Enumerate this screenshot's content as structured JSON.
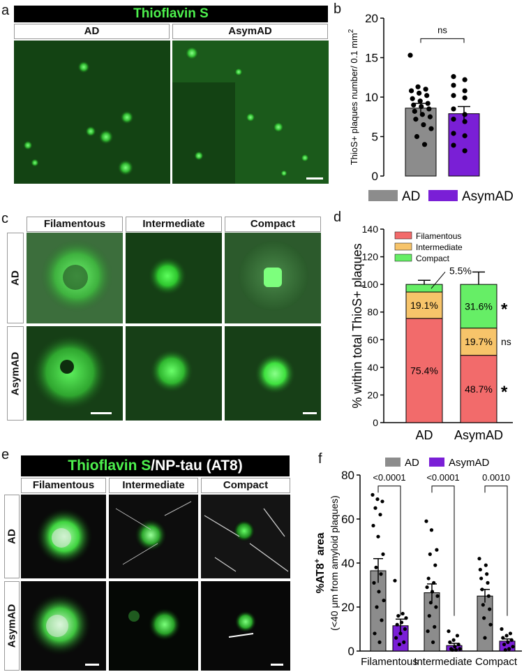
{
  "panels": {
    "a": {
      "letter": "a",
      "banner": "Thioflavin S",
      "columns": [
        "AD",
        "AsymAD"
      ]
    },
    "c": {
      "letter": "c",
      "columns": [
        "Filamentous",
        "Intermediate",
        "Compact"
      ],
      "rows": [
        "AD",
        "AsymAD"
      ]
    },
    "e": {
      "letter": "e",
      "banner_green": "Thioflavin S",
      "banner_white": "/NP-tau (AT8)",
      "columns": [
        "Filamentous",
        "Intermediate",
        "Compact"
      ],
      "rows": [
        "AD",
        "AsymAD"
      ]
    }
  },
  "colors": {
    "AD": "#8c8c8c",
    "AsymAD": "#7a1fd6",
    "Filamentous": "#f26b6b",
    "Intermediate": "#f7c46a",
    "Compact": "#66ee66",
    "tissue_green": "#2ec62e"
  },
  "chart_data": [
    {
      "panel": "b",
      "type": "bar",
      "categories": [
        "AD",
        "AsymAD"
      ],
      "values": [
        8.6,
        7.9
      ],
      "errors": [
        0.6,
        0.9
      ],
      "points": [
        [
          15.3,
          11.3,
          11.0,
          10.8,
          10.5,
          10.2,
          9.8,
          9.5,
          9.2,
          9.0,
          8.8,
          8.5,
          8.2,
          7.8,
          7.5,
          7.2,
          6.5,
          6.0,
          5.0,
          4.0
        ],
        [
          12.6,
          12.2,
          11.5,
          10.8,
          10.2,
          9.9,
          8.5,
          7.8,
          7.2,
          6.9,
          5.4,
          5.1,
          3.9,
          3.2
        ]
      ],
      "ylabel": "ThioS+ plaques number/ 0.1 mm",
      "ylabel_sup": "2",
      "ylim": [
        0,
        20
      ],
      "yticks": [
        0,
        5,
        10,
        15,
        20
      ],
      "comparison": "ns",
      "legend": [
        "AD",
        "AsymAD"
      ],
      "legend_position": "bottom"
    },
    {
      "panel": "d",
      "type": "bar",
      "stacked": true,
      "categories": [
        "AD",
        "AsymAD"
      ],
      "series": [
        {
          "name": "Filamentous",
          "values": [
            75.4,
            48.7
          ],
          "errors": [
            5,
            9
          ]
        },
        {
          "name": "Intermediate",
          "values": [
            19.1,
            19.7
          ],
          "errors": [
            null,
            7
          ]
        },
        {
          "name": "Compact",
          "values": [
            5.5,
            31.6
          ],
          "errors": [
            3,
            9
          ]
        }
      ],
      "labels": [
        [
          "75.4%",
          "19.1%",
          "5.5%"
        ],
        [
          "48.7%",
          "19.7%",
          "31.6%"
        ]
      ],
      "significance": {
        "Filamentous": "*",
        "Intermediate": "ns",
        "Compact": "*"
      },
      "ylabel": "% within total ThioS+ plaques",
      "ylim": [
        0,
        140
      ],
      "yticks": [
        0,
        20,
        40,
        60,
        80,
        100,
        120,
        140
      ],
      "legend_position": "top-left"
    },
    {
      "panel": "f",
      "type": "bar",
      "categories": [
        "Filamentous",
        "Intermediate",
        "Compact"
      ],
      "series": [
        {
          "name": "AD",
          "values": [
            36.5,
            26.5,
            25.0
          ],
          "errors": [
            5.5,
            4.0,
            3.0
          ],
          "points": [
            [
              71,
              69,
              68,
              65,
              62,
              57,
              52,
              44,
              38,
              35,
              31,
              27,
              23,
              20,
              14,
              8,
              4
            ],
            [
              59,
              55,
              46,
              44,
              39,
              33,
              31,
              29,
              27,
              25,
              22,
              20,
              16,
              11,
              9,
              4
            ],
            [
              42,
              39,
              37,
              35,
              33,
              31,
              28,
              25,
              21,
              19,
              15,
              12,
              6
            ]
          ]
        },
        {
          "name": "AsymAD",
          "values": [
            11.5,
            2.5,
            4.5
          ],
          "errors": [
            3.0,
            1.0,
            1.0
          ],
          "points": [
            [
              32,
              17,
              16,
              15,
              13,
              12,
              10,
              8,
              6,
              4,
              3
            ],
            [
              9,
              7,
              5,
              4,
              3,
              2,
              1,
              1,
              0.5,
              0.5
            ],
            [
              10,
              8,
              7,
              6,
              5,
              4,
              3,
              2,
              1,
              0.5
            ]
          ]
        }
      ],
      "pvalues": [
        "<0.0001",
        "<0.0001",
        "0.0010"
      ],
      "ylabel": "%AT8",
      "ylabel_sup": "+",
      "ylabel_tail": " area",
      "ylabel2": "(<40 μm from amyloid plaques)",
      "ylim": [
        0,
        80
      ],
      "yticks": [
        0,
        20,
        40,
        60,
        80
      ],
      "legend": [
        "AD",
        "AsymAD"
      ],
      "legend_position": "top"
    }
  ]
}
